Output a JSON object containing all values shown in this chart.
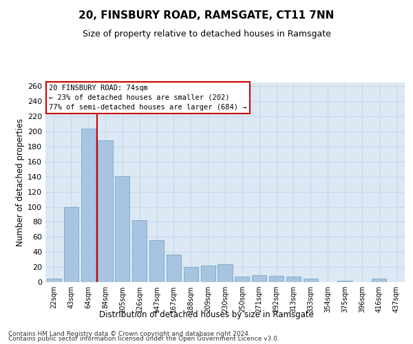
{
  "title": "20, FINSBURY ROAD, RAMSGATE, CT11 7NN",
  "subtitle": "Size of property relative to detached houses in Ramsgate",
  "xlabel": "Distribution of detached houses by size in Ramsgate",
  "ylabel": "Number of detached properties",
  "categories": [
    "22sqm",
    "43sqm",
    "64sqm",
    "84sqm",
    "105sqm",
    "126sqm",
    "147sqm",
    "167sqm",
    "188sqm",
    "209sqm",
    "230sqm",
    "250sqm",
    "271sqm",
    "292sqm",
    "313sqm",
    "333sqm",
    "354sqm",
    "375sqm",
    "396sqm",
    "416sqm",
    "437sqm"
  ],
  "values": [
    5,
    100,
    204,
    188,
    141,
    82,
    56,
    37,
    20,
    22,
    24,
    7,
    9,
    8,
    7,
    5,
    0,
    2,
    0,
    5,
    0
  ],
  "bar_color": "#a8c4e0",
  "bar_edge_color": "#6a9fc0",
  "vline_color": "#cc0000",
  "annotation_title": "20 FINSBURY ROAD: 74sqm",
  "annotation_line1": "← 23% of detached houses are smaller (202)",
  "annotation_line2": "77% of semi-detached houses are larger (684) →",
  "annotation_box_color": "#ffffff",
  "annotation_box_edge": "#cc0000",
  "ylim": [
    0,
    265
  ],
  "yticks": [
    0,
    20,
    40,
    60,
    80,
    100,
    120,
    140,
    160,
    180,
    200,
    220,
    240,
    260
  ],
  "grid_color": "#c8d8e8",
  "background_color": "#dce8f4",
  "footer1": "Contains HM Land Registry data © Crown copyright and database right 2024.",
  "footer2": "Contains public sector information licensed under the Open Government Licence v3.0."
}
